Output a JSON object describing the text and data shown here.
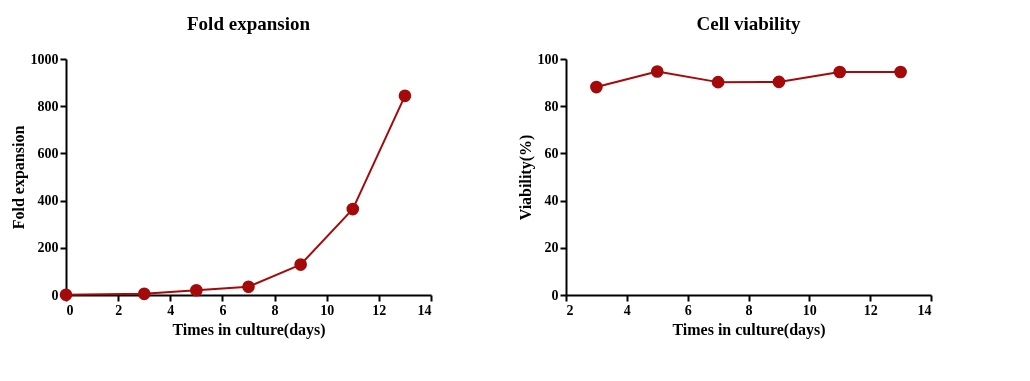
{
  "chart_data": [
    {
      "type": "line",
      "title": "Fold expansion",
      "xlabel": "Times in culture(days)",
      "ylabel": "Fold expansion",
      "x": [
        0,
        3,
        5,
        7,
        9,
        11,
        13
      ],
      "series": [
        {
          "color": "#a50a0a",
          "values": [
            1,
            5,
            20,
            35,
            129,
            364,
            844
          ]
        }
      ],
      "xlim": [
        0,
        14
      ],
      "xticks": [
        0,
        2,
        4,
        6,
        8,
        10,
        12,
        14
      ],
      "ylim": [
        0,
        1000
      ],
      "yticks": [
        0,
        200,
        400,
        600,
        800,
        1000
      ],
      "grid": false,
      "marker": "circle",
      "line_style": "solid"
    },
    {
      "type": "line",
      "title": "Cell viability",
      "xlabel": "Times in culture(days)",
      "ylabel": "Viability(%)",
      "x": [
        3,
        5,
        7,
        9,
        11,
        13
      ],
      "series": [
        {
          "color": "#a50a0a",
          "values": [
            88.1,
            94.7,
            90.2,
            90.3,
            94.5,
            94.5
          ]
        }
      ],
      "xlim": [
        2,
        14
      ],
      "xticks": [
        2,
        4,
        6,
        8,
        10,
        12,
        14
      ],
      "ylim": [
        0,
        100
      ],
      "yticks": [
        0,
        20,
        40,
        60,
        80,
        100
      ],
      "grid": false,
      "marker": "circle",
      "line_style": "solid"
    }
  ]
}
